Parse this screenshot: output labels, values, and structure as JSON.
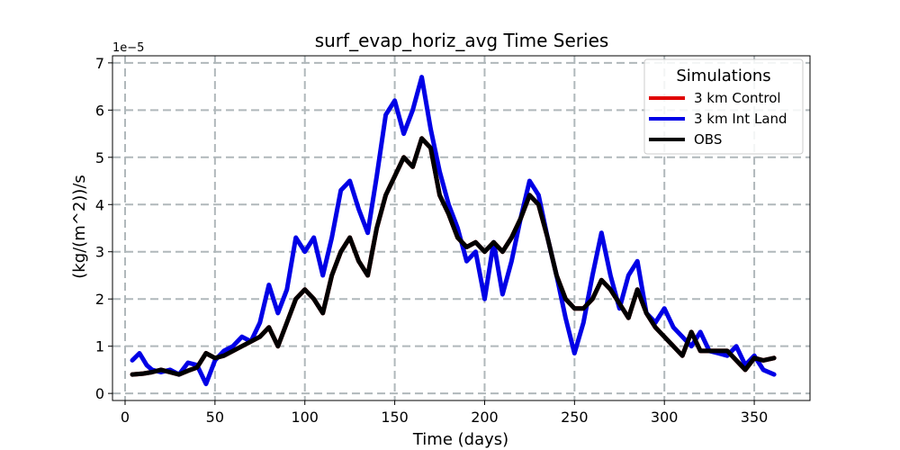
{
  "chart_data": {
    "type": "line",
    "title": "surf_evap_horiz_avg Time Series",
    "xlabel": "Time (days)",
    "ylabel": "(kg/(m^2))/s",
    "y_offset_label": "1e−5",
    "y_scale_exponent": -5,
    "xlim": [
      -7,
      381
    ],
    "ylim": [
      -0.15,
      7.15
    ],
    "x_ticks": [
      0,
      50,
      100,
      150,
      200,
      250,
      300,
      350
    ],
    "y_ticks": [
      0,
      1,
      2,
      3,
      4,
      5,
      6,
      7
    ],
    "grid": true,
    "legend": {
      "title": "Simulations",
      "placement": "top-right"
    },
    "series": [
      {
        "name": "3 km Control",
        "color": "#e00000",
        "x": [
          4,
          10,
          15,
          20,
          25,
          30,
          35,
          40,
          45,
          50,
          55,
          60,
          65,
          70,
          75,
          80,
          85,
          90,
          95,
          100,
          105,
          110,
          115,
          120,
          125,
          130,
          135,
          140,
          145,
          150,
          155,
          160,
          165,
          170,
          175,
          180,
          185,
          190,
          195,
          200,
          205,
          210,
          215,
          220,
          225,
          230,
          235,
          240,
          245,
          250,
          255,
          260,
          265,
          270,
          275,
          280,
          285,
          290,
          295,
          300,
          305,
          310,
          315,
          320,
          325,
          330,
          335,
          340,
          345,
          350,
          355,
          361
        ],
        "y": [
          0.4,
          0.42,
          0.45,
          0.5,
          0.45,
          0.4,
          0.48,
          0.55,
          0.85,
          0.75,
          0.8,
          0.9,
          1.0,
          1.1,
          1.2,
          1.4,
          1.0,
          1.5,
          2.0,
          2.2,
          2.0,
          1.7,
          2.5,
          3.0,
          3.3,
          2.8,
          2.5,
          3.5,
          4.2,
          4.6,
          5.0,
          4.8,
          5.4,
          5.2,
          4.2,
          3.8,
          3.3,
          3.1,
          3.2,
          3.0,
          3.2,
          3.0,
          3.3,
          3.7,
          4.2,
          4.0,
          3.3,
          2.5,
          2.0,
          1.8,
          1.8,
          2.0,
          2.4,
          2.2,
          1.9,
          1.6,
          2.2,
          1.7,
          1.4,
          1.2,
          1.0,
          0.8,
          1.3,
          0.9,
          0.9,
          0.9,
          0.9,
          0.7,
          0.5,
          0.75,
          0.7,
          0.75
        ]
      },
      {
        "name": "3 km Int Land",
        "color": "#0000e6",
        "x": [
          4,
          8,
          12,
          15,
          20,
          25,
          30,
          35,
          40,
          45,
          50,
          55,
          60,
          65,
          70,
          75,
          80,
          85,
          90,
          95,
          100,
          105,
          110,
          115,
          120,
          125,
          130,
          135,
          140,
          145,
          150,
          155,
          160,
          165,
          170,
          175,
          180,
          185,
          190,
          195,
          200,
          205,
          210,
          215,
          220,
          225,
          230,
          235,
          240,
          245,
          250,
          255,
          260,
          265,
          270,
          275,
          280,
          285,
          290,
          295,
          300,
          305,
          310,
          315,
          320,
          325,
          330,
          335,
          340,
          345,
          350,
          355,
          361
        ],
        "y": [
          0.7,
          0.85,
          0.6,
          0.5,
          0.45,
          0.5,
          0.4,
          0.65,
          0.6,
          0.2,
          0.7,
          0.9,
          1.0,
          1.2,
          1.1,
          1.5,
          2.3,
          1.7,
          2.2,
          3.3,
          3.0,
          3.3,
          2.5,
          3.3,
          4.3,
          4.5,
          3.9,
          3.4,
          4.6,
          5.9,
          6.2,
          5.5,
          6.0,
          6.7,
          5.6,
          4.7,
          4.0,
          3.5,
          2.8,
          3.0,
          2.0,
          3.2,
          2.1,
          2.8,
          3.7,
          4.5,
          4.2,
          3.3,
          2.5,
          1.6,
          0.85,
          1.5,
          2.5,
          3.4,
          2.5,
          1.8,
          2.5,
          2.8,
          1.7,
          1.5,
          1.8,
          1.4,
          1.2,
          1.0,
          1.3,
          0.9,
          0.85,
          0.8,
          1.0,
          0.6,
          0.8,
          0.5,
          0.4
        ]
      },
      {
        "name": "OBS",
        "color": "#000000",
        "x": [
          4,
          10,
          15,
          20,
          25,
          30,
          35,
          40,
          45,
          50,
          55,
          60,
          65,
          70,
          75,
          80,
          85,
          90,
          95,
          100,
          105,
          110,
          115,
          120,
          125,
          130,
          135,
          140,
          145,
          150,
          155,
          160,
          165,
          170,
          175,
          180,
          185,
          190,
          195,
          200,
          205,
          210,
          215,
          220,
          225,
          230,
          235,
          240,
          245,
          250,
          255,
          260,
          265,
          270,
          275,
          280,
          285,
          290,
          295,
          300,
          305,
          310,
          315,
          320,
          325,
          330,
          335,
          340,
          345,
          350,
          355,
          361
        ],
        "y": [
          0.4,
          0.42,
          0.45,
          0.5,
          0.45,
          0.4,
          0.48,
          0.55,
          0.85,
          0.75,
          0.8,
          0.9,
          1.0,
          1.1,
          1.2,
          1.4,
          1.0,
          1.5,
          2.0,
          2.2,
          2.0,
          1.7,
          2.5,
          3.0,
          3.3,
          2.8,
          2.5,
          3.5,
          4.2,
          4.6,
          5.0,
          4.8,
          5.4,
          5.2,
          4.2,
          3.8,
          3.3,
          3.1,
          3.2,
          3.0,
          3.2,
          3.0,
          3.3,
          3.7,
          4.2,
          4.0,
          3.3,
          2.5,
          2.0,
          1.8,
          1.8,
          2.0,
          2.4,
          2.2,
          1.9,
          1.6,
          2.2,
          1.7,
          1.4,
          1.2,
          1.0,
          0.8,
          1.3,
          0.9,
          0.9,
          0.9,
          0.9,
          0.7,
          0.5,
          0.75,
          0.7,
          0.75
        ]
      }
    ]
  }
}
